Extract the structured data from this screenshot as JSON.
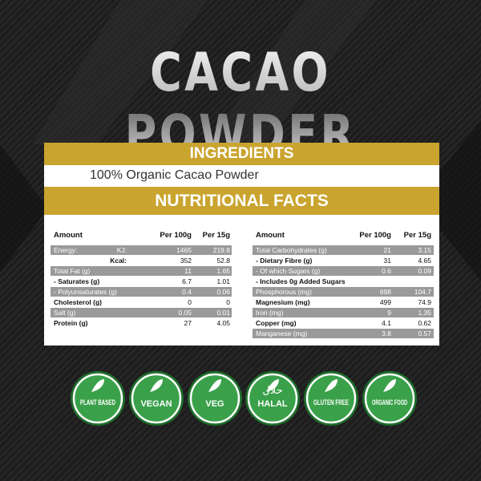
{
  "header": {
    "title": "CACAO POWDER"
  },
  "ingredients": {
    "heading": "INGREDIENTS",
    "text": "100% Organic Cacao Powder"
  },
  "nutrition": {
    "heading": "NUTRITIONAL FACTS",
    "left": {
      "columns": [
        "Amount",
        "Per 100g",
        "Per 15g"
      ],
      "rows": [
        {
          "label": "Energy:",
          "sub": "KJ:",
          "per100": 1465,
          "per15": 219.8
        },
        {
          "sub": "Kcal:",
          "per100": 352,
          "per15": 52.8
        },
        {
          "label": "Total Fat (g)",
          "per100": 11,
          "per15": 1.65
        },
        {
          "label": "- Saturates (g)",
          "per100": 6.7,
          "per15": 1.01
        },
        {
          "label": "- Polyunsaturates (g)",
          "per100": 0.4,
          "per15": 0.06
        },
        {
          "label": "Cholesterol (g)",
          "per100": 0,
          "per15": 0
        },
        {
          "label": "Salt (g)",
          "per100": 0.05,
          "per15": 0.01
        },
        {
          "label": "Protein (g)",
          "per100": 27,
          "per15": 4.05
        }
      ]
    },
    "right": {
      "columns": [
        "Amount",
        "Per 100g",
        "Per 15g"
      ],
      "rows": [
        {
          "label": "Total Carbohydrates (g)",
          "per100": 21,
          "per15": 3.15
        },
        {
          "label": "- Dietary Fibre (g)",
          "per100": 31,
          "per15": 4.65
        },
        {
          "label": "- Of which Sugars (g)",
          "per100": 0.6,
          "per15": 0.09
        },
        {
          "label": "- Includes 0g Added Sugars"
        },
        {
          "label": "Phosphorous (mg)",
          "per100": 698,
          "per15": 104.7
        },
        {
          "label": "Magnesium (mg)",
          "per100": 499,
          "per15": 74.9
        },
        {
          "label": "Iron (mg)",
          "per100": 9,
          "per15": 1.35
        },
        {
          "label": "Copper (mg)",
          "per100": 4.1,
          "per15": 0.62
        },
        {
          "label": "Manganese (mg)",
          "per100": 3.8,
          "per15": 0.57
        }
      ]
    }
  },
  "badges": [
    {
      "label": "PLANT BASED"
    },
    {
      "label": "VEGAN"
    },
    {
      "label": "VEG"
    },
    {
      "label": "HALAL",
      "script": "حلال"
    },
    {
      "label": "GLUTEN FREE"
    },
    {
      "label": "ORGANIC FOOD"
    }
  ]
}
